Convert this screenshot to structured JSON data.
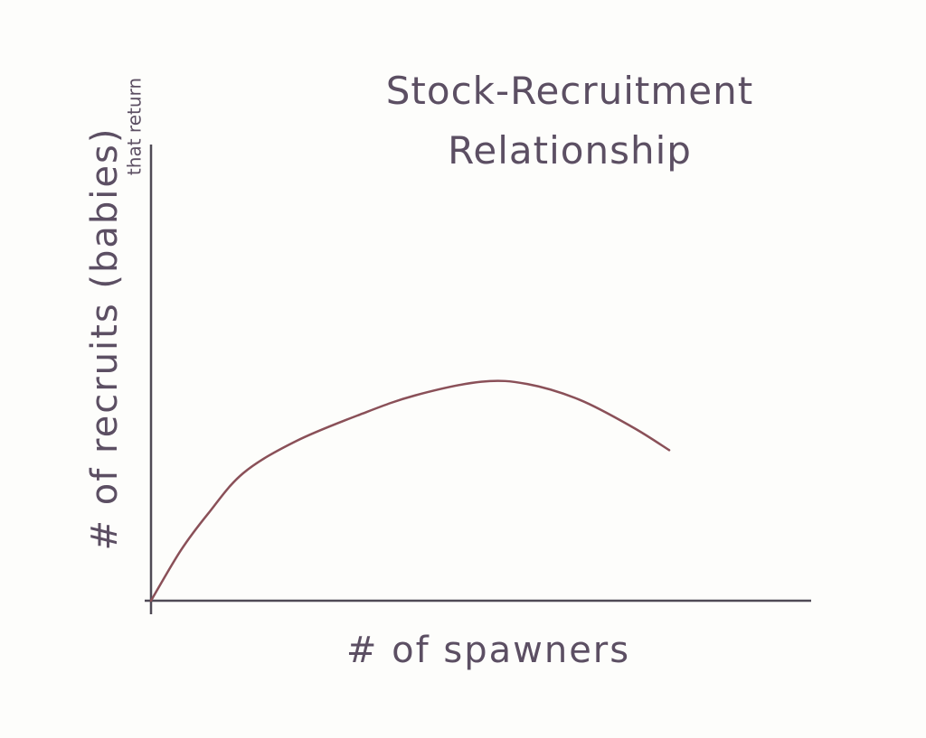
{
  "chart_data": {
    "type": "line",
    "title": "Stock-Recruitment Relationship",
    "xlabel": "# of spawners",
    "ylabel": "# of recruits (babies)",
    "ylabel_note": "that return",
    "x": [
      0,
      4.5,
      8.6,
      14,
      22,
      32,
      40,
      50,
      57,
      65,
      73,
      78.5
    ],
    "values": [
      0,
      11,
      19,
      28,
      35,
      41,
      45,
      48,
      47.5,
      44,
      38,
      33
    ],
    "color": "#8a5058",
    "xlim": [
      0,
      100
    ],
    "ylim": [
      0,
      100
    ]
  }
}
